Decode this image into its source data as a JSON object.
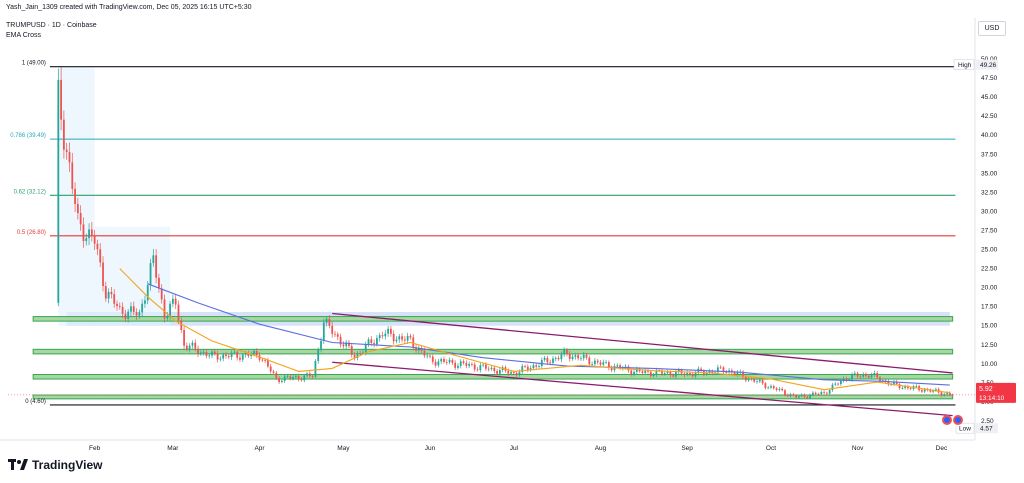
{
  "header": {
    "created_line": "Yash_Jain_1309 created with TradingView.com, Dec 05, 2025 16:15 UTC+5:30",
    "symbol_line": "TRUMPUSD · 1D · Coinbase",
    "indicator_line": "EMA Cross"
  },
  "currency_button": "USD",
  "watermark": "TradingView",
  "colors": {
    "up": "#26a69a",
    "down": "#ef5350",
    "ema_fast": "#f7a21b",
    "ema_slow": "#5b6ee1",
    "channel": "#8e1a6c",
    "zone_fill": "#a9d6a0",
    "zone_border": "#33a853",
    "supply_zone": "#c9d8f5",
    "fib_1": "#131722",
    "fib_786": "#26a8b8",
    "fib_62": "#2f9e6a",
    "fib_5": "#e53935",
    "fib_0": "#131722",
    "current_price_bg": "#f23645"
  },
  "chart_data": {
    "type": "candlestick",
    "title": "",
    "symbol": "TRUMPUSD",
    "interval": "1D",
    "exchange": "Coinbase",
    "currency": "USD",
    "ylim": [
      0,
      52.5
    ],
    "y_ticks": [
      "2.50",
      "5.00",
      "7.50",
      "10.00",
      "12.50",
      "15.00",
      "17.50",
      "20.00",
      "22.50",
      "25.00",
      "27.50",
      "30.00",
      "32.50",
      "35.00",
      "37.50",
      "40.00",
      "42.50",
      "45.00",
      "47.50",
      "50.00"
    ],
    "x_ticks": [
      {
        "label": "Feb",
        "date": "2025-02-01"
      },
      {
        "label": "Mar",
        "date": "2025-03-01"
      },
      {
        "label": "Apr",
        "date": "2025-04-01"
      },
      {
        "label": "May",
        "date": "2025-05-01"
      },
      {
        "label": "Jun",
        "date": "2025-06-01"
      },
      {
        "label": "Jul",
        "date": "2025-07-01"
      },
      {
        "label": "Aug",
        "date": "2025-08-01"
      },
      {
        "label": "Sep",
        "date": "2025-09-01"
      },
      {
        "label": "Oct",
        "date": "2025-10-01"
      },
      {
        "label": "Nov",
        "date": "2025-11-01"
      },
      {
        "label": "Dec",
        "date": "2025-12-01"
      }
    ],
    "fib_levels": [
      {
        "label": "1 (49.00)",
        "value": 49.0,
        "color_key": "fib_1"
      },
      {
        "label": "0.786 (39.49)",
        "value": 39.49,
        "color_key": "fib_786"
      },
      {
        "label": "0.62 (32.12)",
        "value": 32.12,
        "color_key": "fib_62"
      },
      {
        "label": "0.5 (26.80)",
        "value": 26.8,
        "color_key": "fib_5"
      },
      {
        "label": "0 (4.60)",
        "value": 4.6,
        "color_key": "fib_0"
      }
    ],
    "high": {
      "label": "High",
      "value": "49.26"
    },
    "low": {
      "label": "Low",
      "value": "4.57"
    },
    "current": {
      "price": "5.92",
      "countdown": "13:14:10"
    },
    "zones": [
      {
        "name": "zone-16",
        "low": 15.6,
        "high": 16.2
      },
      {
        "name": "zone-11-5",
        "low": 11.3,
        "high": 11.9
      },
      {
        "name": "zone-8-3",
        "low": 8.0,
        "high": 8.6
      },
      {
        "name": "zone-5-5",
        "low": 5.4,
        "high": 5.9
      }
    ],
    "supply_zone": {
      "from": "2025-01-22",
      "to": "2025-12-04",
      "low": 15.0,
      "high": 16.8
    },
    "channel_upper": [
      {
        "date": "2025-04-27",
        "value": 16.6
      },
      {
        "date": "2025-12-05",
        "value": 8.8
      }
    ],
    "channel_lower": [
      {
        "date": "2025-04-27",
        "value": 10.2
      },
      {
        "date": "2025-12-05",
        "value": 3.2
      }
    ],
    "ema_fast": [
      {
        "date": "2025-02-10",
        "value": 22.5
      },
      {
        "date": "2025-02-20",
        "value": 18.8
      },
      {
        "date": "2025-03-02",
        "value": 15.6
      },
      {
        "date": "2025-03-15",
        "value": 13.0
      },
      {
        "date": "2025-04-01",
        "value": 10.9
      },
      {
        "date": "2025-04-15",
        "value": 9.0
      },
      {
        "date": "2025-04-27",
        "value": 9.4
      },
      {
        "date": "2025-05-10",
        "value": 11.6
      },
      {
        "date": "2025-05-25",
        "value": 12.8
      },
      {
        "date": "2025-06-10",
        "value": 11.1
      },
      {
        "date": "2025-07-01",
        "value": 9.0
      },
      {
        "date": "2025-07-25",
        "value": 9.8
      },
      {
        "date": "2025-08-20",
        "value": 9.1
      },
      {
        "date": "2025-09-10",
        "value": 8.8
      },
      {
        "date": "2025-10-01",
        "value": 8.0
      },
      {
        "date": "2025-10-20",
        "value": 6.6
      },
      {
        "date": "2025-11-08",
        "value": 7.6
      },
      {
        "date": "2025-12-04",
        "value": 6.2
      }
    ],
    "ema_slow": [
      {
        "date": "2025-02-20",
        "value": 20.5
      },
      {
        "date": "2025-03-10",
        "value": 18.0
      },
      {
        "date": "2025-04-01",
        "value": 15.2
      },
      {
        "date": "2025-04-27",
        "value": 12.8
      },
      {
        "date": "2025-05-25",
        "value": 12.2
      },
      {
        "date": "2025-06-20",
        "value": 10.8
      },
      {
        "date": "2025-07-20",
        "value": 9.7
      },
      {
        "date": "2025-08-20",
        "value": 9.4
      },
      {
        "date": "2025-09-20",
        "value": 8.9
      },
      {
        "date": "2025-10-20",
        "value": 7.9
      },
      {
        "date": "2025-11-10",
        "value": 7.7
      },
      {
        "date": "2025-12-04",
        "value": 7.2
      }
    ],
    "price_path": [
      {
        "date": "2025-01-18",
        "value": 18.0
      },
      {
        "date": "2025-01-19",
        "value": 45.0
      },
      {
        "date": "2025-01-22",
        "value": 38.0
      },
      {
        "date": "2025-01-26",
        "value": 28.5
      },
      {
        "date": "2025-02-01",
        "value": 26.0
      },
      {
        "date": "2025-02-05",
        "value": 19.5
      },
      {
        "date": "2025-02-10",
        "value": 17.0
      },
      {
        "date": "2025-02-17",
        "value": 16.5
      },
      {
        "date": "2025-02-22",
        "value": 23.5
      },
      {
        "date": "2025-02-26",
        "value": 16.5
      },
      {
        "date": "2025-03-02",
        "value": 18.0
      },
      {
        "date": "2025-03-05",
        "value": 12.5
      },
      {
        "date": "2025-03-15",
        "value": 11.0
      },
      {
        "date": "2025-04-01",
        "value": 11.2
      },
      {
        "date": "2025-04-07",
        "value": 8.0
      },
      {
        "date": "2025-04-20",
        "value": 8.4
      },
      {
        "date": "2025-04-24",
        "value": 15.5
      },
      {
        "date": "2025-05-05",
        "value": 11.0
      },
      {
        "date": "2025-05-15",
        "value": 14.0
      },
      {
        "date": "2025-05-25",
        "value": 13.0
      },
      {
        "date": "2025-06-01",
        "value": 10.5
      },
      {
        "date": "2025-06-15",
        "value": 9.8
      },
      {
        "date": "2025-07-01",
        "value": 8.8
      },
      {
        "date": "2025-07-20",
        "value": 11.3
      },
      {
        "date": "2025-08-01",
        "value": 10.0
      },
      {
        "date": "2025-08-15",
        "value": 8.9
      },
      {
        "date": "2025-09-01",
        "value": 8.7
      },
      {
        "date": "2025-09-15",
        "value": 9.2
      },
      {
        "date": "2025-09-25",
        "value": 7.8
      },
      {
        "date": "2025-10-10",
        "value": 5.6
      },
      {
        "date": "2025-10-20",
        "value": 6.2
      },
      {
        "date": "2025-10-28",
        "value": 8.2
      },
      {
        "date": "2025-11-05",
        "value": 8.6
      },
      {
        "date": "2025-11-15",
        "value": 7.1
      },
      {
        "date": "2025-11-25",
        "value": 6.6
      },
      {
        "date": "2025-12-05",
        "value": 5.92
      }
    ],
    "grid": false,
    "legend": "none"
  }
}
